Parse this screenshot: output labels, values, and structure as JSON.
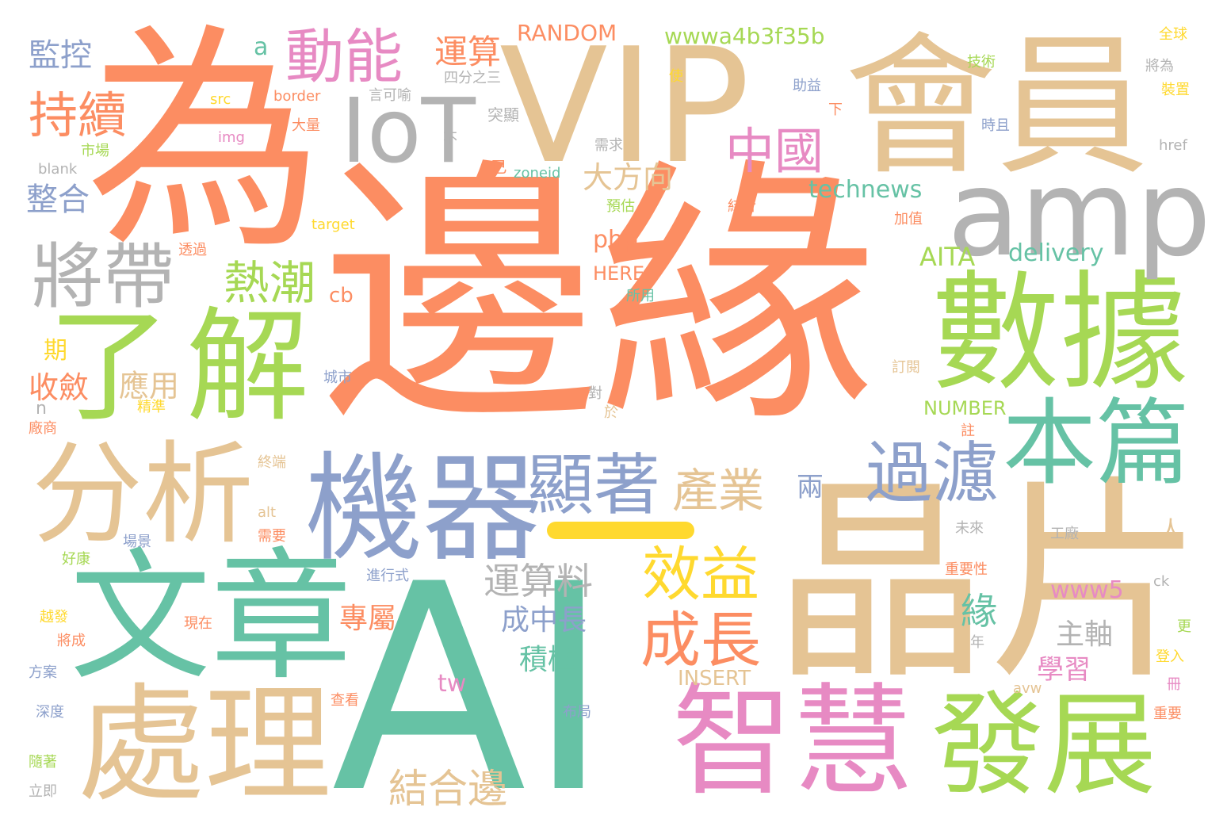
{
  "colors": {
    "orange": "#fc8d62",
    "teal": "#66c2a5",
    "blue": "#8da0cb",
    "pink": "#e78ac3",
    "green": "#a6d854",
    "yellow": "#ffd92f",
    "tan": "#e5c494",
    "gray": "#b3b3b3"
  },
  "words": [
    "邊緣",
    "AI",
    "晶片",
    "為",
    "VIP",
    "會員",
    "數據",
    "機器",
    "文章",
    "處理",
    "智慧",
    "發展",
    "分析",
    "解",
    "了",
    "本篇",
    "amp",
    "IoT",
    "將帶",
    "顯著",
    "過濾",
    "效益",
    "成長",
    "一",
    "動能",
    "持續",
    "中國",
    "熱潮",
    "產業",
    "運算料",
    "大方向",
    "結合邊",
    "監控",
    "整合",
    "運算",
    "wwwa4b3f35b",
    "RANDOM",
    "technews",
    "AITA",
    "delivery",
    "php",
    "收斂",
    "應用",
    "期",
    "專屬",
    "成中長",
    "積極",
    "www5",
    "主軸",
    "學習",
    "緣",
    "兩",
    "人",
    "tw",
    "INSERT",
    "NUMBER",
    "cb",
    "HERE",
    "a",
    "四分之三",
    "言可喻",
    "突顯",
    "技術",
    "全球",
    "使",
    "將為",
    "裝置",
    "助益",
    "下",
    "時且",
    "href",
    "src",
    "border",
    "img",
    "大量",
    "不",
    "需求",
    "已",
    "zoneid",
    "blank",
    "市場",
    "target",
    "預估",
    "結合",
    "加值",
    "透過",
    "所用",
    "訂閱",
    "城市",
    "對",
    "於",
    "精準",
    "廠商",
    "註",
    "終端",
    "alt",
    "需要",
    "場景",
    "好康",
    "未來",
    "工廠",
    "進行式",
    "重要性",
    "現在",
    "越發",
    "將成",
    "ck",
    "更",
    "登入",
    "冊",
    "方案",
    "查看",
    "布局",
    "avw",
    "深度",
    "重要",
    "隨著",
    "立即",
    "n",
    "年"
  ]
}
